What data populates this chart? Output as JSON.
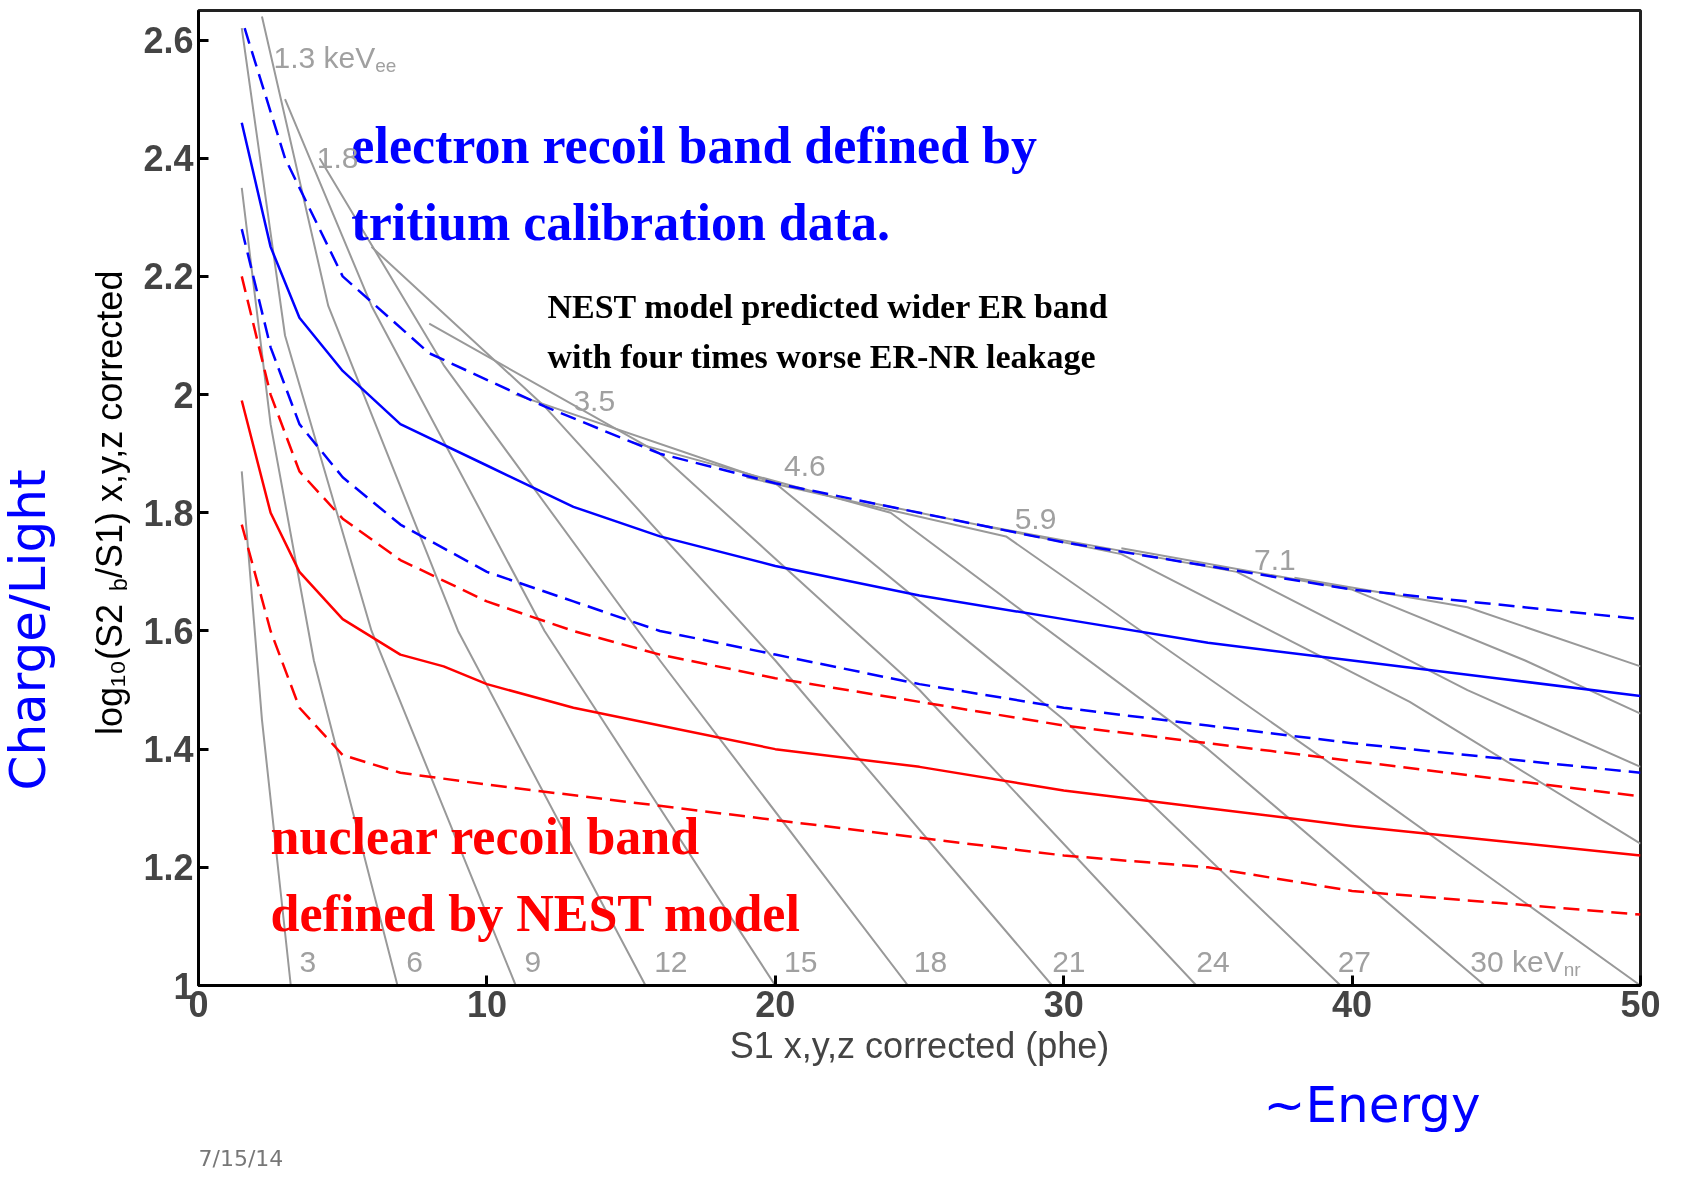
{
  "chart_data": {
    "type": "line",
    "xlabel": "S1 x,y,z corrected (phe)",
    "ylabel": "log₁₀(S2$_{b}$/S1) x,y,z corrected",
    "xlim": [
      0,
      50
    ],
    "ylim": [
      1,
      2.65
    ],
    "xticks": [
      0,
      10,
      20,
      30,
      40,
      50
    ],
    "yticks": [
      1,
      1.2,
      1.4,
      1.6,
      1.8,
      2,
      2.2,
      2.4,
      2.6
    ],
    "grid": false,
    "series": [
      {
        "color": "#999999",
        "line_style": "solid",
        "x": [
          1.5,
          2.2,
          3.2
        ],
        "values": [
          1.87,
          1.45,
          1.0
        ]
      },
      {
        "color": "#999999",
        "line_style": "solid",
        "x": [
          1.5,
          2.5,
          4,
          6.9
        ],
        "values": [
          2.35,
          1.95,
          1.55,
          1.0
        ]
      },
      {
        "color": "#999999",
        "line_style": "solid",
        "x": [
          1.5,
          3,
          6,
          11
        ],
        "values": [
          2.62,
          2.1,
          1.6,
          1.0
        ]
      },
      {
        "color": "#999999",
        "line_style": "solid",
        "x": [
          2.2,
          4.5,
          9,
          15.5
        ],
        "values": [
          2.64,
          2.15,
          1.6,
          1.0
        ]
      },
      {
        "color": "#999999",
        "line_style": "solid",
        "x": [
          3,
          6,
          12,
          20
        ],
        "values": [
          2.5,
          2.15,
          1.6,
          1.0
        ]
      },
      {
        "color": "#999999",
        "line_style": "solid",
        "x": [
          4.2,
          8.5,
          16,
          24.6
        ],
        "values": [
          2.4,
          2.05,
          1.55,
          1.0
        ]
      },
      {
        "color": "#999999",
        "line_style": "solid",
        "x": [
          6,
          12,
          20,
          29.6
        ],
        "values": [
          2.25,
          1.98,
          1.55,
          1.0
        ]
      },
      {
        "color": "#999999",
        "line_style": "solid",
        "x": [
          8,
          16,
          25,
          34.6
        ],
        "values": [
          2.12,
          1.9,
          1.5,
          1.0
        ]
      },
      {
        "color": "#999999",
        "line_style": "solid",
        "x": [
          11,
          20,
          30,
          39.6
        ],
        "values": [
          2.0,
          1.85,
          1.45,
          1.0
        ]
      },
      {
        "color": "#999999",
        "line_style": "solid",
        "x": [
          15,
          24,
          35,
          44.6
        ],
        "values": [
          1.92,
          1.8,
          1.4,
          1.0
        ]
      },
      {
        "color": "#999999",
        "line_style": "solid",
        "x": [
          19,
          28,
          40,
          50
        ],
        "values": [
          1.86,
          1.76,
          1.35,
          1.0
        ]
      },
      {
        "color": "#999999",
        "line_style": "solid",
        "x": [
          23,
          32,
          42,
          50
        ],
        "values": [
          1.82,
          1.73,
          1.48,
          1.24
        ]
      },
      {
        "color": "#999999",
        "line_style": "solid",
        "x": [
          27,
          36,
          44,
          50
        ],
        "values": [
          1.78,
          1.7,
          1.5,
          1.37
        ]
      },
      {
        "color": "#999999",
        "line_style": "solid",
        "x": [
          32,
          40,
          46,
          50
        ],
        "values": [
          1.74,
          1.67,
          1.55,
          1.46
        ]
      },
      {
        "color": "#999999",
        "line_style": "solid",
        "x": [
          38,
          44,
          50
        ],
        "values": [
          1.69,
          1.64,
          1.54
        ]
      },
      {
        "color": "#0000ff",
        "line_style": "dashed",
        "x": [
          1.6,
          3,
          5,
          8,
          12,
          16,
          20,
          25,
          30,
          35,
          40,
          45,
          50
        ],
        "values": [
          2.62,
          2.4,
          2.2,
          2.07,
          1.98,
          1.9,
          1.85,
          1.8,
          1.75,
          1.71,
          1.67,
          1.645,
          1.62
        ]
      },
      {
        "color": "#0000ff",
        "line_style": "solid",
        "x": [
          1.5,
          2.5,
          3.5,
          5,
          7,
          10,
          13,
          16,
          20,
          25,
          30,
          35,
          40,
          45,
          50
        ],
        "values": [
          2.46,
          2.25,
          2.13,
          2.04,
          1.95,
          1.88,
          1.81,
          1.76,
          1.71,
          1.66,
          1.62,
          1.58,
          1.55,
          1.52,
          1.49
        ]
      },
      {
        "color": "#0000ff",
        "line_style": "dashed",
        "x": [
          1.5,
          2.5,
          3.5,
          5,
          7,
          10,
          13,
          16,
          20,
          25,
          30,
          35,
          40,
          45,
          50
        ],
        "values": [
          2.28,
          2.08,
          1.95,
          1.86,
          1.78,
          1.7,
          1.65,
          1.6,
          1.56,
          1.51,
          1.47,
          1.44,
          1.41,
          1.385,
          1.36
        ]
      },
      {
        "color": "#ff0000",
        "line_style": "dashed",
        "x": [
          1.5,
          2.5,
          3.5,
          5,
          7,
          10,
          13,
          16,
          20,
          25,
          30,
          35,
          40,
          45,
          50
        ],
        "values": [
          2.2,
          2.0,
          1.87,
          1.79,
          1.72,
          1.65,
          1.6,
          1.56,
          1.52,
          1.48,
          1.44,
          1.41,
          1.38,
          1.35,
          1.32
        ]
      },
      {
        "color": "#ff0000",
        "line_style": "solid",
        "x": [
          1.5,
          2.5,
          3.5,
          5,
          7,
          8.5,
          10,
          13,
          16,
          20,
          25,
          30,
          35,
          40,
          45,
          50
        ],
        "values": [
          1.99,
          1.8,
          1.7,
          1.62,
          1.56,
          1.54,
          1.51,
          1.47,
          1.44,
          1.4,
          1.37,
          1.33,
          1.3,
          1.27,
          1.245,
          1.22
        ]
      },
      {
        "color": "#ff0000",
        "line_style": "dashed",
        "x": [
          1.5,
          2.5,
          3.5,
          5,
          7,
          10,
          15,
          20,
          25,
          30,
          35,
          40,
          45,
          50
        ],
        "values": [
          1.78,
          1.6,
          1.47,
          1.39,
          1.36,
          1.34,
          1.31,
          1.28,
          1.25,
          1.22,
          1.2,
          1.16,
          1.14,
          1.12
        ]
      }
    ],
    "annotations": [
      "electron recoil band defined by\ntritium calibration data.",
      "NEST model predicted wider ER band\nwith four times worse ER-NR leakage",
      "nuclear recoil band\ndefined by NEST model",
      "Charge/Light",
      "~Energy",
      "7/15/14",
      "1.3 keV$_{ee}$",
      "1.8",
      "3.5",
      "4.6",
      "5.9",
      "7.1",
      "3",
      "6",
      "9",
      "12",
      "15",
      "18",
      "21",
      "24",
      "27",
      "30 keV$_{nr}$"
    ]
  }
}
